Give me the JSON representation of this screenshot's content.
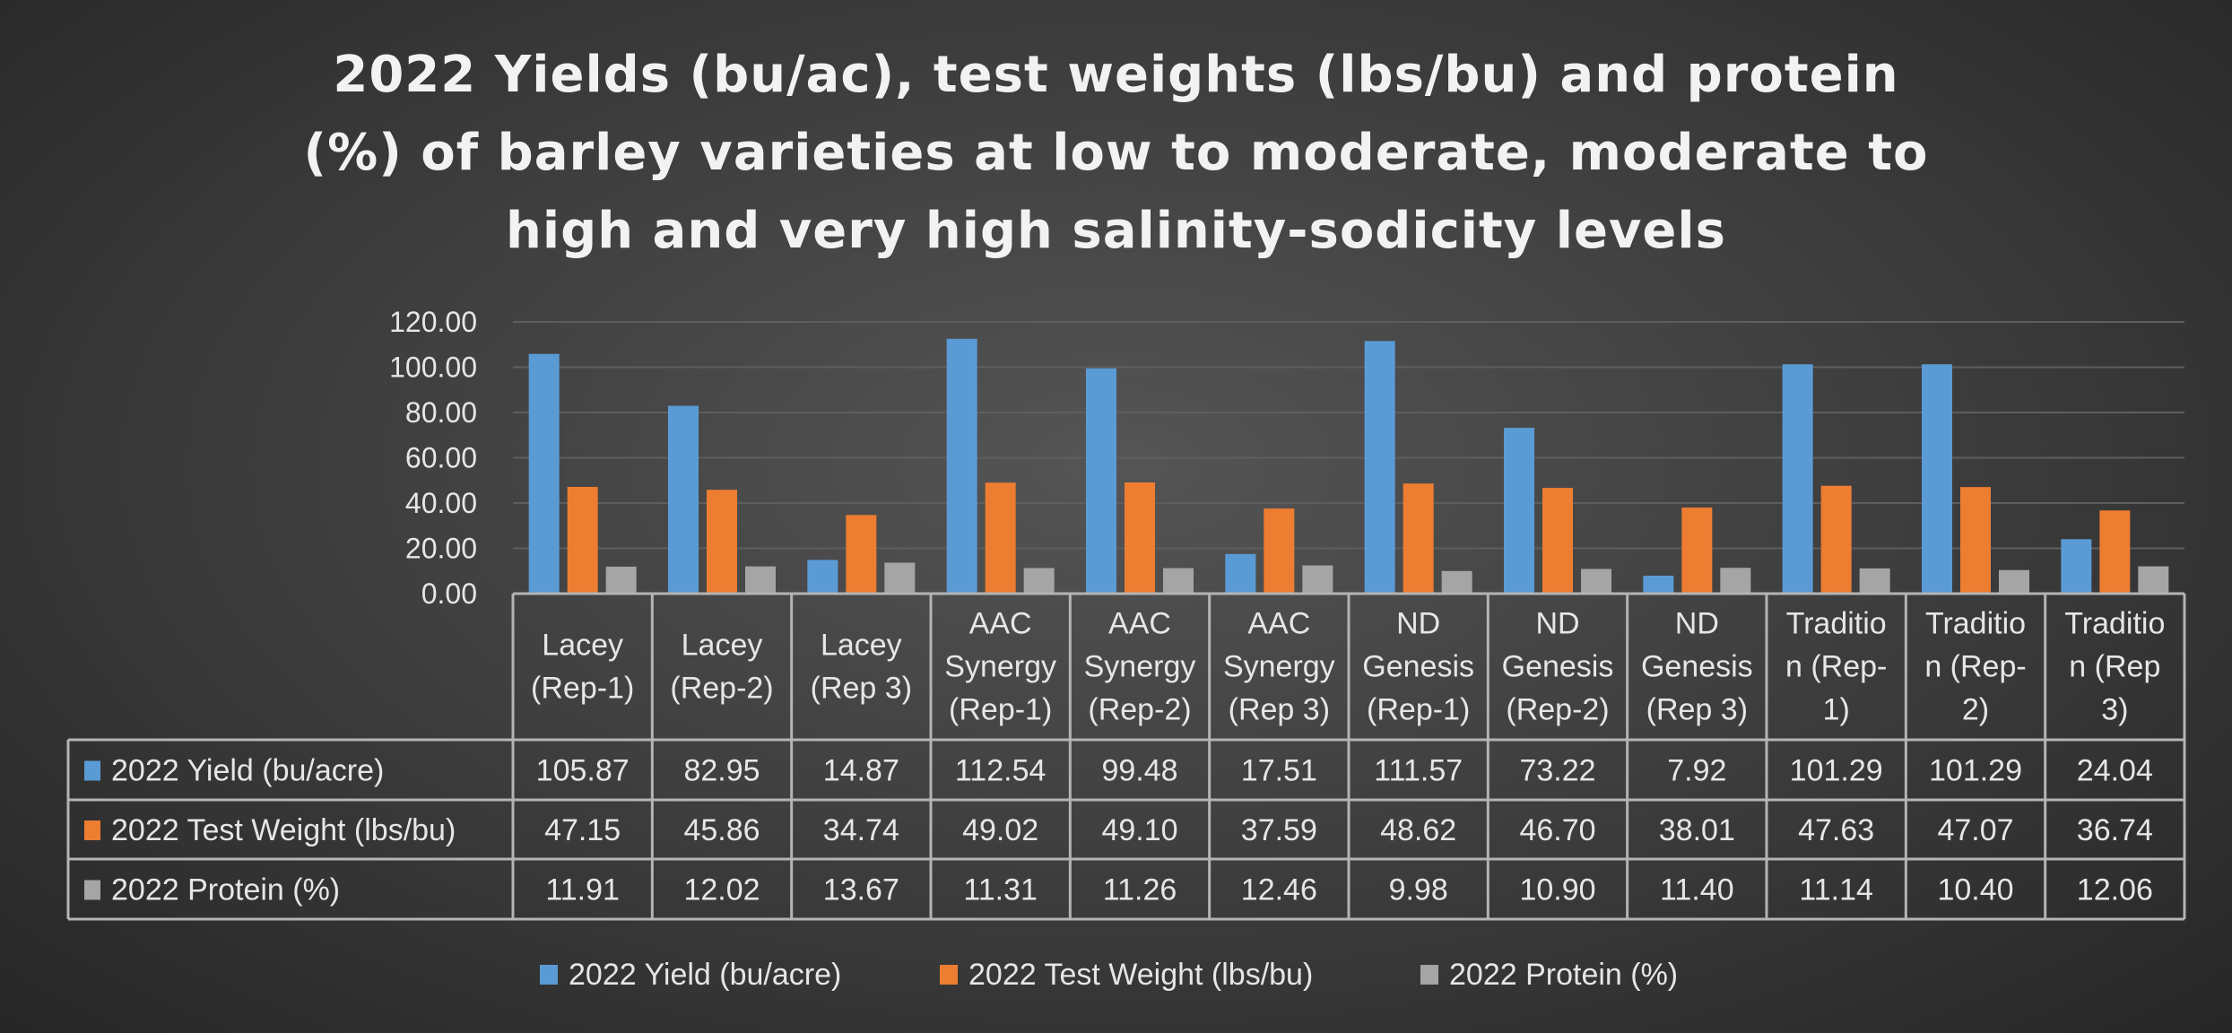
{
  "chart_data": {
    "type": "bar",
    "title_lines": [
      "2022 Yields (bu/ac), test weights (lbs/bu) and protein",
      "(%) of barley varieties at low to moderate, moderate to",
      "high and very high salinity-sodicity levels"
    ],
    "categories": [
      [
        "Lacey",
        "(Rep-1)"
      ],
      [
        "Lacey",
        "(Rep-2)"
      ],
      [
        "Lacey",
        "(Rep 3)"
      ],
      [
        "AAC",
        "Synergy",
        "(Rep-1)"
      ],
      [
        "AAC",
        "Synergy",
        "(Rep-2)"
      ],
      [
        "AAC",
        "Synergy",
        "(Rep 3)"
      ],
      [
        "ND",
        "Genesis",
        "(Rep-1)"
      ],
      [
        "ND",
        "Genesis",
        "(Rep-2)"
      ],
      [
        "ND",
        "Genesis",
        "(Rep 3)"
      ],
      [
        "Traditio",
        "n (Rep-",
        "1)"
      ],
      [
        "Traditio",
        "n (Rep-",
        "2)"
      ],
      [
        "Traditio",
        "n (Rep",
        "3)"
      ]
    ],
    "series": [
      {
        "name": "2022 Yield (bu/acre)",
        "color": "#5b9bd5",
        "values": [
          "105.87",
          "82.95",
          "14.87",
          "112.54",
          "99.48",
          "17.51",
          "111.57",
          "73.22",
          "7.92",
          "101.29",
          "101.29",
          "24.04"
        ]
      },
      {
        "name": "2022 Test Weight (lbs/bu)",
        "color": "#ed7d31",
        "values": [
          "47.15",
          "45.86",
          "34.74",
          "49.02",
          "49.10",
          "37.59",
          "48.62",
          "46.70",
          "38.01",
          "47.63",
          "47.07",
          "36.74"
        ]
      },
      {
        "name": "2022 Protein (%)",
        "color": "#a5a5a5",
        "values": [
          "11.91",
          "12.02",
          "13.67",
          "11.31",
          "11.26",
          "12.46",
          "9.98",
          "10.90",
          "11.40",
          "11.14",
          "10.40",
          "12.06"
        ]
      }
    ],
    "y_ticks": [
      "0.00",
      "20.00",
      "40.00",
      "60.00",
      "80.00",
      "100.00",
      "120.00"
    ],
    "ylim": [
      0,
      120
    ],
    "grid": true,
    "data_table": true,
    "legend_position": "bottom"
  }
}
